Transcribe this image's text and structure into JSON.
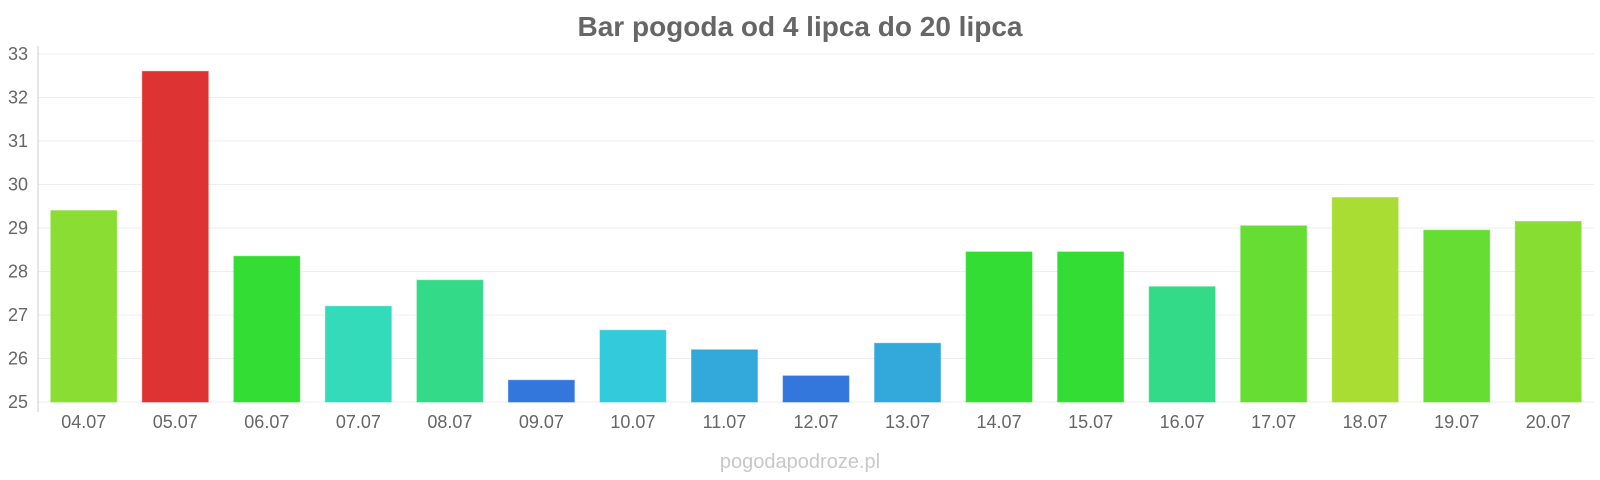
{
  "chart_data": {
    "type": "bar",
    "title": "Bar pogoda od 4 lipca do 20 lipca",
    "xlabel": "",
    "ylabel": "",
    "ylim": [
      25,
      33
    ],
    "yticks": [
      "25",
      "26",
      "27",
      "28",
      "29",
      "30",
      "31",
      "32",
      "33"
    ],
    "grid": true,
    "categories": [
      "04.07",
      "05.07",
      "06.07",
      "07.07",
      "08.07",
      "09.07",
      "10.07",
      "11.07",
      "12.07",
      "13.07",
      "14.07",
      "15.07",
      "16.07",
      "17.07",
      "18.07",
      "19.07",
      "20.07"
    ],
    "values": [
      29.4,
      32.6,
      28.35,
      27.2,
      27.8,
      25.5,
      26.65,
      26.2,
      25.6,
      26.35,
      28.45,
      28.45,
      27.65,
      29.05,
      29.7,
      28.95,
      29.15
    ],
    "colors": [
      "#8add33",
      "#dd3333",
      "#33dd33",
      "#33dbbb",
      "#33db88",
      "#3377dd",
      "#33cbdb",
      "#33a8db",
      "#3377dd",
      "#33a8db",
      "#33dd33",
      "#33dd33",
      "#33db88",
      "#66dd33",
      "#aadd33",
      "#66dd33",
      "#88dd33"
    ]
  },
  "watermark": "pogodapodroze.pl"
}
